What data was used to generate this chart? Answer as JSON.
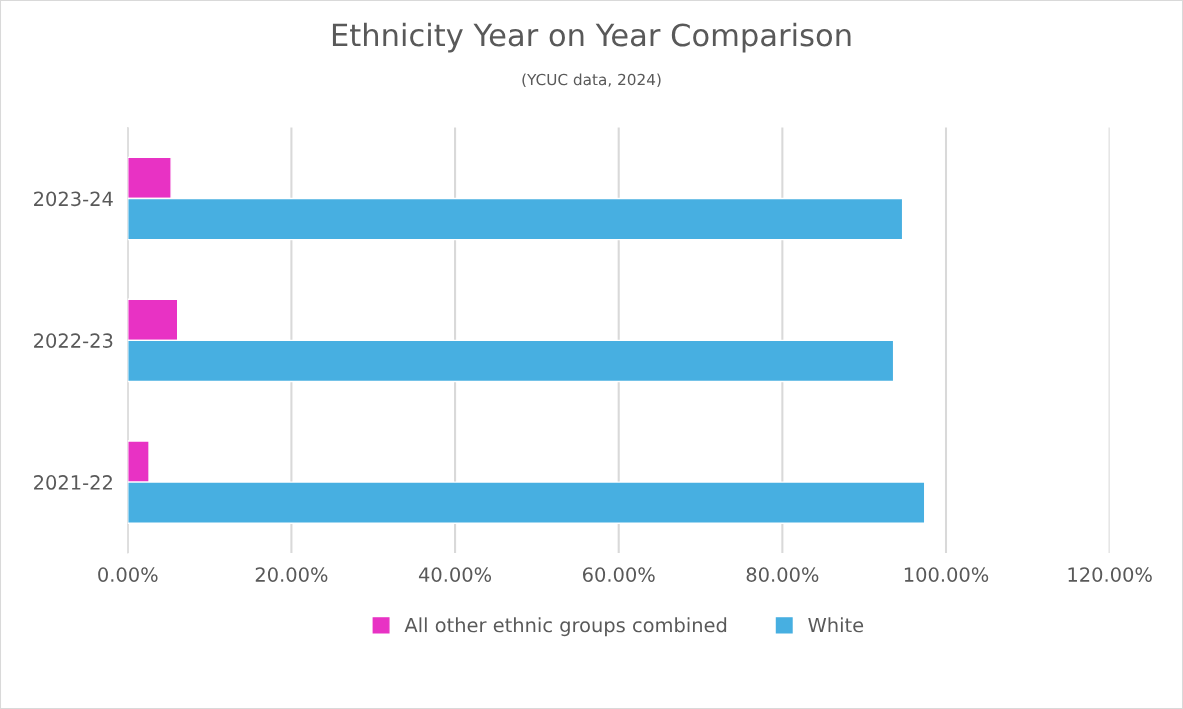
{
  "chart_data": {
    "type": "bar",
    "orientation": "horizontal",
    "title": "Ethnicity Year on Year Comparison",
    "subtitle": "(YCUC data, 2024)",
    "categories": [
      "2023-24",
      "2022-23",
      "2021-22"
    ],
    "series": [
      {
        "name": "All other ethnic groups combined",
        "color": "#e832c4",
        "values": [
          5.3,
          6.1,
          2.6
        ]
      },
      {
        "name": "White",
        "color": "#47afe1",
        "values": [
          94.7,
          93.6,
          97.4
        ]
      }
    ],
    "xlim": [
      0,
      120
    ],
    "xticks": [
      {
        "value": 0,
        "label": "0.00%"
      },
      {
        "value": 20,
        "label": "20.00%"
      },
      {
        "value": 40,
        "label": "40.00%"
      },
      {
        "value": 60,
        "label": "60.00%"
      },
      {
        "value": 80,
        "label": "80.00%"
      },
      {
        "value": 100,
        "label": "100.00%"
      },
      {
        "value": 120,
        "label": "120.00%"
      }
    ],
    "grid": "x",
    "legend": "bottom"
  }
}
